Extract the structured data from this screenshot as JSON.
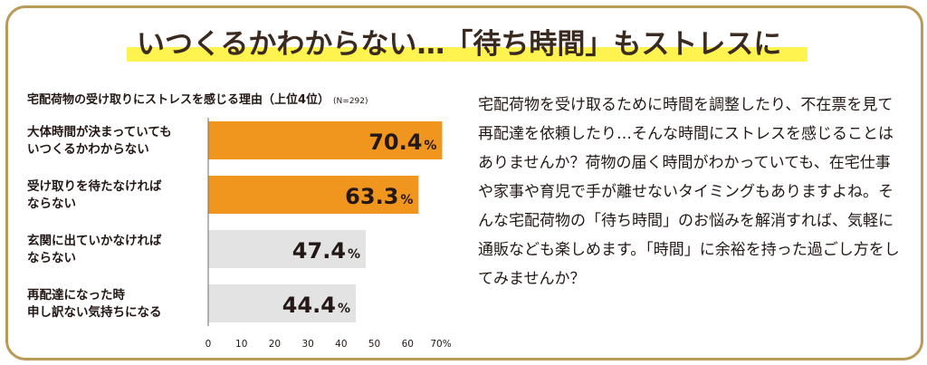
{
  "headline": "いつくるかわからない…「待ち時間」もストレスに",
  "chart_data": {
    "type": "bar",
    "orientation": "horizontal",
    "title": "宅配荷物の受け取りにストレスを感じる理由（上位4位）",
    "sample_note": "(N=292)",
    "categories": [
      "大体時間が決まっていても\nいつくるかわからない",
      "受け取りを待たなければ\nならない",
      "玄関に出ていかなければ\nならない",
      "再配達になった時\n申し訳ない気持ちになる"
    ],
    "values": [
      70.4,
      63.3,
      47.4,
      44.4
    ],
    "value_labels": [
      "70.4",
      "63.3",
      "47.4",
      "44.4"
    ],
    "unit": "%",
    "xlim": [
      0,
      70
    ],
    "ticks": [
      "0",
      "10",
      "20",
      "30",
      "40",
      "50",
      "60",
      "70%"
    ],
    "tick_values": [
      0,
      10,
      20,
      30,
      40,
      50,
      60,
      70
    ],
    "highlight_count": 2,
    "colors": {
      "highlight": "#f0961e",
      "normal": "#e3e3e3",
      "axis": "#6e6e6e"
    }
  },
  "body_text": "宅配荷物を受け取るために時間を調整したり、不在票を見て再配達を依頼したり…そんな時間にストレスを感じることはありませんか？荷物の届く時間がわかっていても、在宅仕事や家事や育児で手が離せないタイミングもありますよね。そんな宅配荷物の「待ち時間」のお悩みを解消すれば、気軽に通販なども楽しめます。「時間」に余裕を持った過ごし方をしてみませんか？",
  "colors": {
    "frame": "#b99a57",
    "headline_highlight": "#fff44f"
  }
}
